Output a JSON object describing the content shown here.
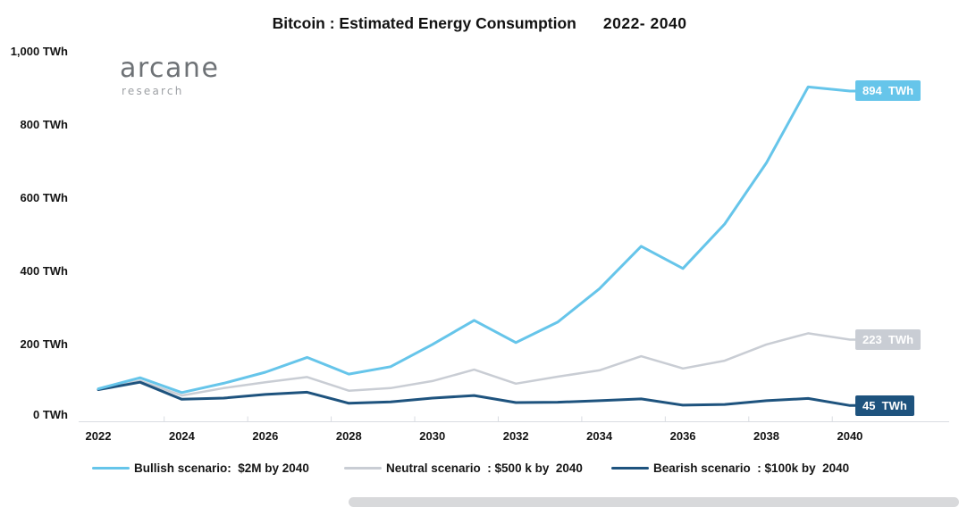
{
  "title": {
    "main": "Bitcoin : Estimated Energy Consumption",
    "range": "2022- 2040"
  },
  "logo": {
    "brand": "arcane",
    "sub": "research"
  },
  "colors": {
    "bullish": "#66c5ea",
    "neutral": "#c9cdd4",
    "bearish": "#1e537e",
    "axis": "#d9dce2",
    "badge_text": "#ffffff"
  },
  "chart_data": {
    "type": "line",
    "title": "Bitcoin : Estimated Energy Consumption 2022- 2040",
    "x": [
      2022,
      2023,
      2024,
      2025,
      2026,
      2027,
      2028,
      2029,
      2030,
      2031,
      2032,
      2033,
      2034,
      2035,
      2036,
      2037,
      2038,
      2039,
      2040
    ],
    "x_tick_labels": [
      "2022",
      "2024",
      "2026",
      "2028",
      "2030",
      "2032",
      "2034",
      "2036",
      "2038",
      "2040"
    ],
    "y_tick_labels": [
      "1,000 TWh",
      "800 TWh",
      "600 TWh",
      "400 TWh",
      "200 TWh",
      "0 TWh"
    ],
    "y_tick_values": [
      1000,
      800,
      600,
      400,
      200,
      0
    ],
    "ylim": [
      0,
      1000
    ],
    "unit": "TWh",
    "grid": false,
    "legend_position": "bottom",
    "series": [
      {
        "name": "Bullish scenario",
        "legend_label": "Bullish scenario:  $2M by 2040",
        "color": "#66c5ea",
        "end_label": "894  TWh",
        "values": [
          90,
          120,
          80,
          105,
          135,
          175,
          130,
          150,
          210,
          275,
          215,
          270,
          360,
          475,
          415,
          535,
          700,
          905,
          894
        ]
      },
      {
        "name": "Neutral scenario",
        "legend_label": "Neutral scenario  : $500 k by  2040",
        "color": "#c9cdd4",
        "end_label": "223  TWh",
        "values": [
          88,
          112,
          72,
          92,
          108,
          122,
          85,
          92,
          111,
          142,
          104,
          123,
          140,
          178,
          145,
          166,
          210,
          240,
          223
        ]
      },
      {
        "name": "Bearish scenario",
        "legend_label": "Bearish scenario  : $100k by  2040",
        "color": "#1e537e",
        "end_label": "45  TWh",
        "values": [
          88,
          108,
          62,
          65,
          75,
          81,
          51,
          55,
          65,
          72,
          53,
          54,
          58,
          63,
          46,
          48,
          58,
          64,
          45
        ]
      }
    ]
  }
}
